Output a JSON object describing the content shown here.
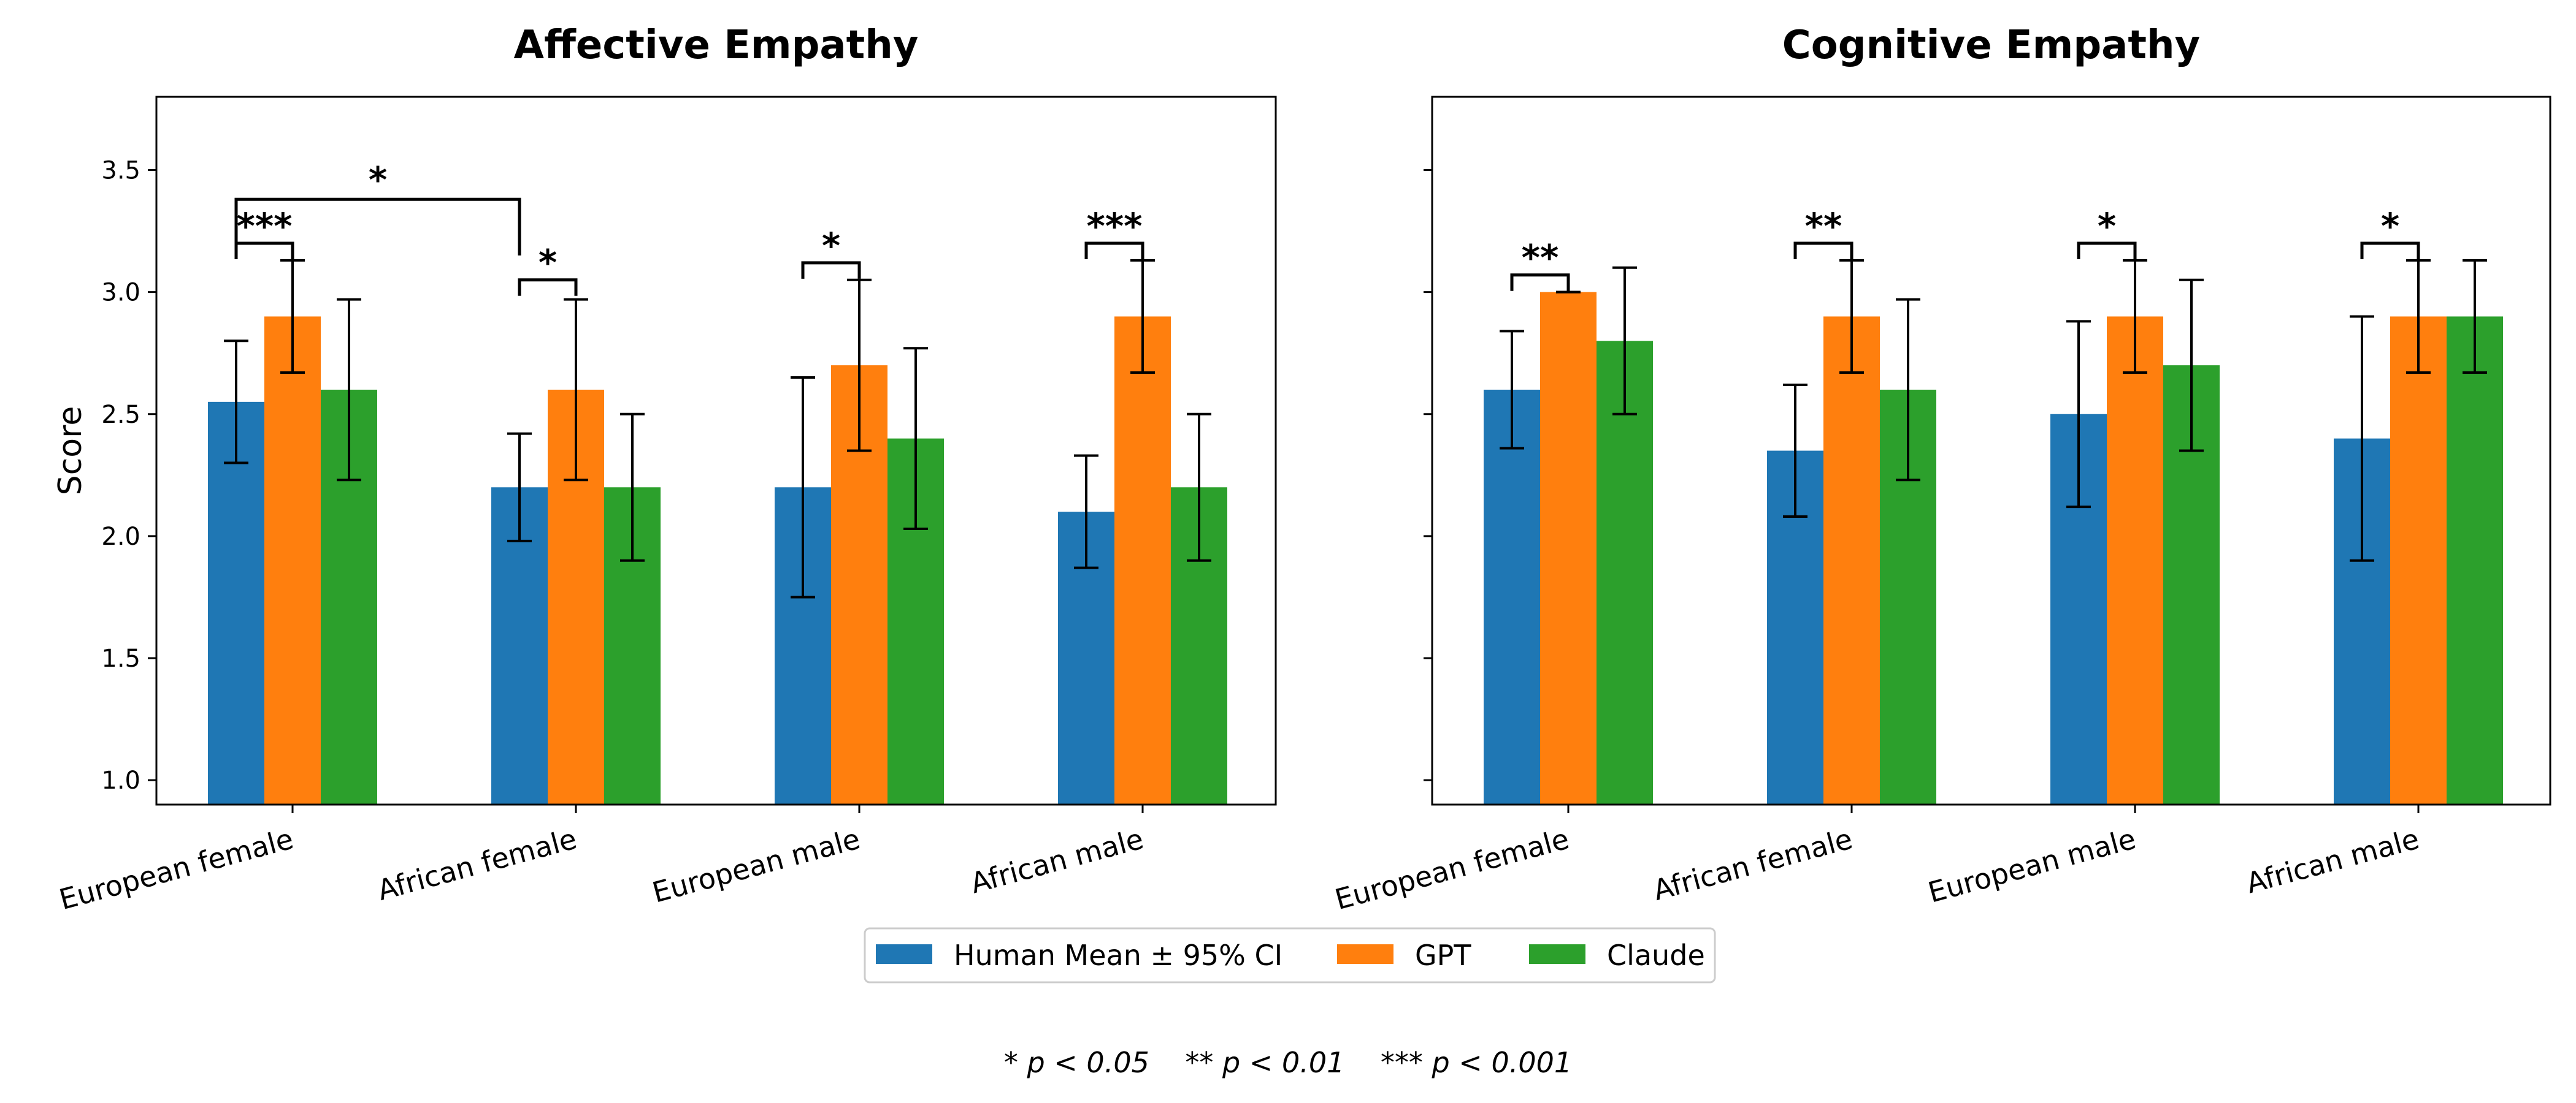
{
  "chart_data": [
    {
      "type": "bar",
      "title": "Affective Empathy",
      "ylabel": "Score",
      "ylim": [
        0.9,
        3.8
      ],
      "yticks": [
        "1.0",
        "1.5",
        "2.0",
        "2.5",
        "3.0",
        "3.5"
      ],
      "categories": [
        "European female",
        "African female",
        "European male",
        "African male"
      ],
      "series": [
        {
          "name": "Human Mean ± 95% CI",
          "values": [
            2.55,
            2.2,
            2.2,
            2.1
          ],
          "ci_low": [
            2.3,
            1.98,
            1.75,
            1.87
          ],
          "ci_high": [
            2.8,
            2.42,
            2.65,
            2.33
          ]
        },
        {
          "name": "GPT",
          "values": [
            2.9,
            2.6,
            2.7,
            2.9
          ],
          "ci_low": [
            2.67,
            2.23,
            2.35,
            2.67
          ],
          "ci_high": [
            3.13,
            2.97,
            3.05,
            3.13
          ]
        },
        {
          "name": "Claude",
          "values": [
            2.6,
            2.2,
            2.4,
            2.2
          ],
          "ci_low": [
            2.23,
            1.9,
            2.03,
            1.9
          ],
          "ci_high": [
            2.97,
            2.5,
            2.77,
            2.5
          ]
        }
      ],
      "annotations": [
        {
          "type": "pair",
          "category": 0,
          "label": "***",
          "y": 3.2
        },
        {
          "type": "pair",
          "category": 1,
          "label": "*",
          "y": 3.05
        },
        {
          "type": "pair",
          "category": 2,
          "label": "*",
          "y": 3.12
        },
        {
          "type": "pair",
          "category": 3,
          "label": "***",
          "y": 3.2
        },
        {
          "type": "cross",
          "from": 0,
          "to": 1,
          "label": "*",
          "y": 3.38,
          "drop_to": 3.15
        }
      ]
    },
    {
      "type": "bar",
      "title": "Cognitive Empathy",
      "ylabel": "",
      "ylim": [
        0.9,
        3.8
      ],
      "yticks": [
        "",
        "",
        "",
        "",
        "",
        ""
      ],
      "categories": [
        "European female",
        "African female",
        "European male",
        "African male"
      ],
      "series": [
        {
          "name": "Human Mean ± 95% CI",
          "values": [
            2.6,
            2.35,
            2.5,
            2.4
          ],
          "ci_low": [
            2.36,
            2.08,
            2.12,
            1.9
          ],
          "ci_high": [
            2.84,
            2.62,
            2.88,
            2.9
          ]
        },
        {
          "name": "GPT",
          "values": [
            3.0,
            2.9,
            2.9,
            2.9
          ],
          "ci_low": [
            3.0,
            2.67,
            2.67,
            2.67
          ],
          "ci_high": [
            3.0,
            3.13,
            3.13,
            3.13
          ]
        },
        {
          "name": "Claude",
          "values": [
            2.8,
            2.6,
            2.7,
            2.9
          ],
          "ci_low": [
            2.5,
            2.23,
            2.35,
            2.67
          ],
          "ci_high": [
            3.1,
            2.97,
            3.05,
            3.13
          ]
        }
      ],
      "annotations": [
        {
          "type": "pair",
          "category": 0,
          "label": "**",
          "y": 3.07
        },
        {
          "type": "pair",
          "category": 1,
          "label": "**",
          "y": 3.2
        },
        {
          "type": "pair",
          "category": 2,
          "label": "*",
          "y": 3.2
        },
        {
          "type": "pair",
          "category": 3,
          "label": "*",
          "y": 3.2
        }
      ]
    }
  ],
  "legend": {
    "placement": "bottom-center",
    "items": [
      {
        "label": "Human Mean ± 95% CI",
        "color": "#1f77b4"
      },
      {
        "label": "GPT",
        "color": "#ff7f0e"
      },
      {
        "label": "Claude",
        "color": "#2ca02c"
      }
    ]
  },
  "footnote": "* p < 0.05    ** p < 0.01    *** p < 0.001"
}
